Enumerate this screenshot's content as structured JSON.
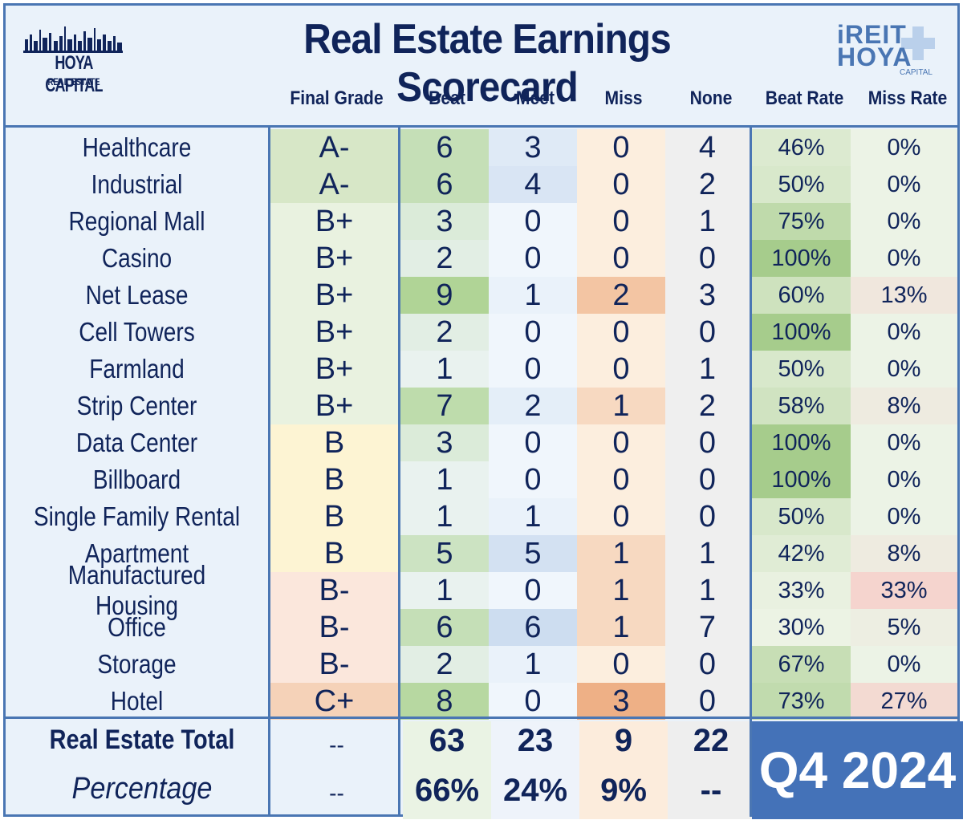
{
  "title": "Real Estate Earnings Scorecard",
  "logo_left": {
    "line1": "HOYA CAPITAL",
    "line2": "REAL ESTATE"
  },
  "logo_right": {
    "line1": "iREIT",
    "line2": "HOYA",
    "line3": "CAPITAL"
  },
  "columns": [
    "Final Grade",
    "Beat",
    "Meet",
    "Miss",
    "None",
    "Beat Rate",
    "Miss Rate"
  ],
  "colors": {
    "border": "#4a76b3",
    "quarter_box": "#4472b8",
    "text": "#10245a"
  },
  "chart_data": {
    "type": "table",
    "rows": [
      {
        "sector": "Healthcare",
        "grade": "A-",
        "beat": 6,
        "meet": 3,
        "miss": 0,
        "none": 4,
        "beat_rate": "46%",
        "miss_rate": "0%"
      },
      {
        "sector": "Industrial",
        "grade": "A-",
        "beat": 6,
        "meet": 4,
        "miss": 0,
        "none": 2,
        "beat_rate": "50%",
        "miss_rate": "0%"
      },
      {
        "sector": "Regional Mall",
        "grade": "B+",
        "beat": 3,
        "meet": 0,
        "miss": 0,
        "none": 1,
        "beat_rate": "75%",
        "miss_rate": "0%"
      },
      {
        "sector": "Casino",
        "grade": "B+",
        "beat": 2,
        "meet": 0,
        "miss": 0,
        "none": 0,
        "beat_rate": "100%",
        "miss_rate": "0%"
      },
      {
        "sector": "Net Lease",
        "grade": "B+",
        "beat": 9,
        "meet": 1,
        "miss": 2,
        "none": 3,
        "beat_rate": "60%",
        "miss_rate": "13%"
      },
      {
        "sector": "Cell Towers",
        "grade": "B+",
        "beat": 2,
        "meet": 0,
        "miss": 0,
        "none": 0,
        "beat_rate": "100%",
        "miss_rate": "0%"
      },
      {
        "sector": "Farmland",
        "grade": "B+",
        "beat": 1,
        "meet": 0,
        "miss": 0,
        "none": 1,
        "beat_rate": "50%",
        "miss_rate": "0%"
      },
      {
        "sector": "Strip Center",
        "grade": "B+",
        "beat": 7,
        "meet": 2,
        "miss": 1,
        "none": 2,
        "beat_rate": "58%",
        "miss_rate": "8%"
      },
      {
        "sector": "Data Center",
        "grade": "B",
        "beat": 3,
        "meet": 0,
        "miss": 0,
        "none": 0,
        "beat_rate": "100%",
        "miss_rate": "0%"
      },
      {
        "sector": "Billboard",
        "grade": "B",
        "beat": 1,
        "meet": 0,
        "miss": 0,
        "none": 0,
        "beat_rate": "100%",
        "miss_rate": "0%"
      },
      {
        "sector": "Single Family Rental",
        "grade": "B",
        "beat": 1,
        "meet": 1,
        "miss": 0,
        "none": 0,
        "beat_rate": "50%",
        "miss_rate": "0%"
      },
      {
        "sector": "Apartment",
        "grade": "B",
        "beat": 5,
        "meet": 5,
        "miss": 1,
        "none": 1,
        "beat_rate": "42%",
        "miss_rate": "8%"
      },
      {
        "sector": "Manufactured Housing",
        "grade": "B-",
        "beat": 1,
        "meet": 0,
        "miss": 1,
        "none": 1,
        "beat_rate": "33%",
        "miss_rate": "33%"
      },
      {
        "sector": "Office",
        "grade": "B-",
        "beat": 6,
        "meet": 6,
        "miss": 1,
        "none": 7,
        "beat_rate": "30%",
        "miss_rate": "5%"
      },
      {
        "sector": "Storage",
        "grade": "B-",
        "beat": 2,
        "meet": 1,
        "miss": 0,
        "none": 0,
        "beat_rate": "67%",
        "miss_rate": "0%"
      },
      {
        "sector": "Hotel",
        "grade": "C+",
        "beat": 8,
        "meet": 0,
        "miss": 3,
        "none": 0,
        "beat_rate": "73%",
        "miss_rate": "27%"
      }
    ],
    "total": {
      "label": "Real Estate Total",
      "grade": "--",
      "beat": "63",
      "meet": "23",
      "miss": "9",
      "none": "22"
    },
    "percentage": {
      "label": "Percentage",
      "grade": "--",
      "beat": "66%",
      "meet": "24%",
      "miss": "9%",
      "none": "--"
    },
    "quarter": "Q4 2024"
  }
}
